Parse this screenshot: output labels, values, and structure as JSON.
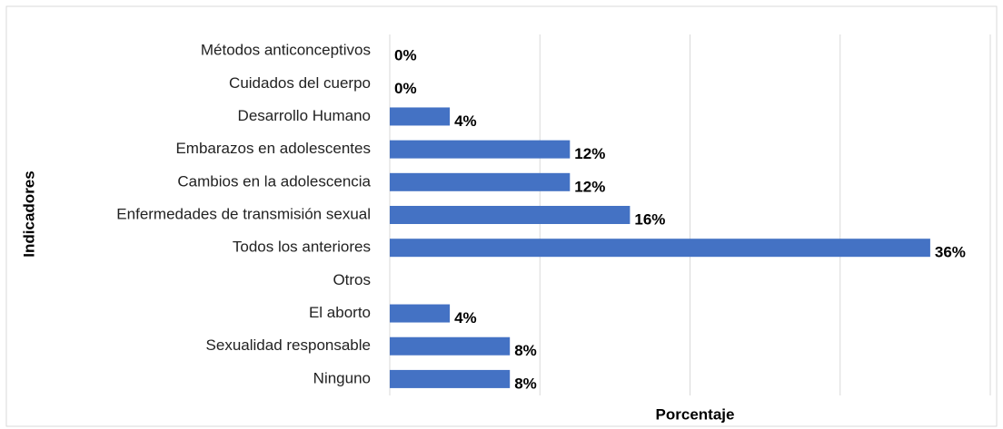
{
  "chart_data": {
    "type": "bar",
    "orientation": "horizontal",
    "categories": [
      "Métodos anticonceptivos",
      "Cuidados del cuerpo",
      "Desarrollo Humano",
      "Embarazos en adolescentes",
      "Cambios en la adolescencia",
      "Enfermedades de transmisión sexual",
      "Todos los anteriores",
      "Otros",
      "El aborto",
      "Sexualidad responsable",
      "Ninguno"
    ],
    "values": [
      0,
      0,
      4,
      12,
      12,
      16,
      36,
      null,
      4,
      8,
      8
    ],
    "value_labels": [
      "0%",
      "0%",
      "4%",
      "12%",
      "12%",
      "16%",
      "36%",
      null,
      "4%",
      "8%",
      "8%"
    ],
    "color": "#4472c4",
    "xlabel": "Porcentaje",
    "ylabel": "Indicadores",
    "xlim": [
      0,
      40
    ],
    "xticks": [
      0,
      10,
      20,
      30,
      40
    ],
    "grid": true
  }
}
